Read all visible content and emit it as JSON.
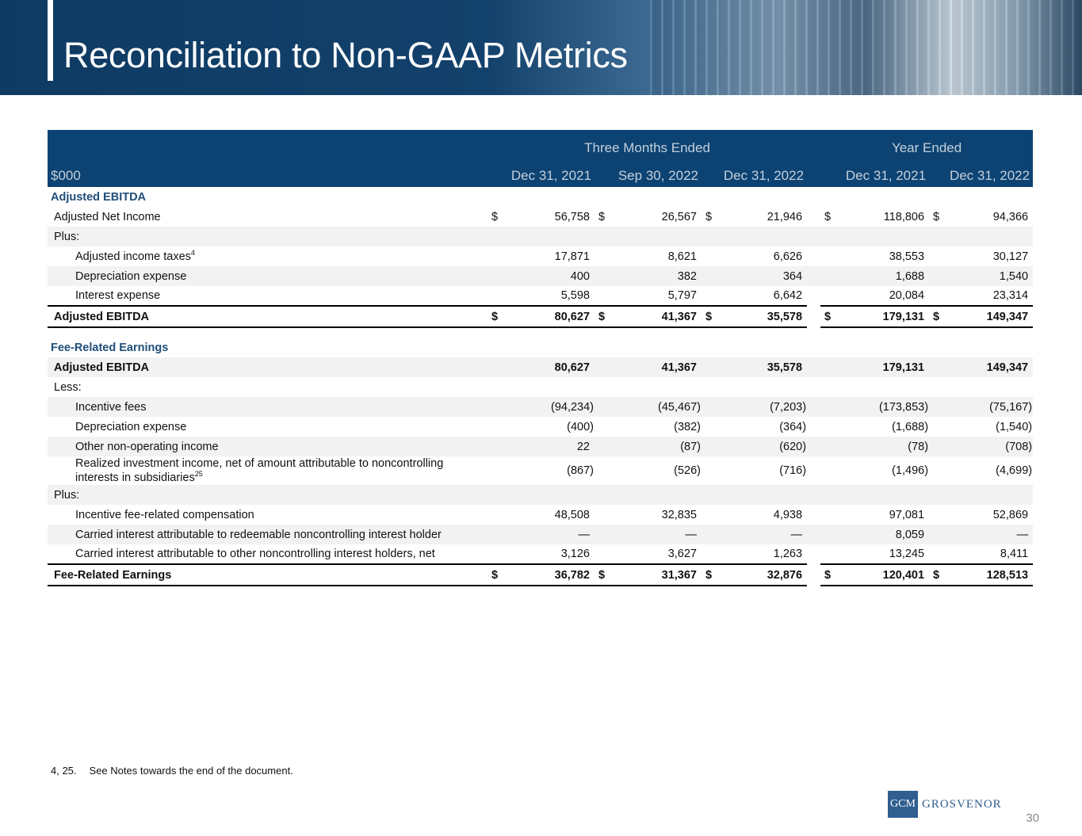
{
  "header": {
    "title": "Reconciliation to Non-GAAP Metrics"
  },
  "table": {
    "group_headers": [
      "Three Months Ended",
      "Year Ended"
    ],
    "unit": "$000",
    "columns": [
      "Dec 31, 2021",
      "Sep 30, 2022",
      "Dec 31, 2022",
      "Dec 31, 2021",
      "Dec 31, 2022"
    ],
    "currency": "$",
    "rows": [
      {
        "label": "Adjusted EBITDA",
        "kind": "section"
      },
      {
        "label": "Adjusted Net Income",
        "kind": "normal",
        "dollar": true,
        "values": [
          "56,758",
          "26,567",
          "21,946",
          "118,806",
          "94,366"
        ]
      },
      {
        "label": "Plus:",
        "kind": "normal",
        "shaded": true
      },
      {
        "label": "Adjusted income taxes",
        "sup": "4",
        "kind": "indent",
        "values": [
          "17,871",
          "8,621",
          "6,626",
          "38,553",
          "30,127"
        ]
      },
      {
        "label": "Depreciation expense",
        "kind": "indent",
        "shaded": true,
        "values": [
          "400",
          "382",
          "364",
          "1,688",
          "1,540"
        ]
      },
      {
        "label": "Interest expense",
        "kind": "indent",
        "values": [
          "5,598",
          "5,797",
          "6,642",
          "20,084",
          "23,314"
        ]
      },
      {
        "label": "Adjusted EBITDA",
        "kind": "total",
        "dollar": true,
        "values": [
          "80,627",
          "41,367",
          "35,578",
          "179,131",
          "149,347"
        ]
      },
      {
        "label": "Fee-Related Earnings",
        "kind": "section",
        "spaced": true
      },
      {
        "label": "Adjusted EBITDA",
        "kind": "bold",
        "shaded": true,
        "values": [
          "80,627",
          "41,367",
          "35,578",
          "179,131",
          "149,347"
        ]
      },
      {
        "label": "Less:",
        "kind": "normal"
      },
      {
        "label": "Incentive fees",
        "kind": "indent",
        "shaded": true,
        "values": [
          "(94,234)",
          "(45,467)",
          "(7,203)",
          "(173,853)",
          "(75,167)"
        ]
      },
      {
        "label": "Depreciation expense",
        "kind": "indent",
        "values": [
          "(400)",
          "(382)",
          "(364)",
          "(1,688)",
          "(1,540)"
        ]
      },
      {
        "label": "Other non-operating income",
        "kind": "indent",
        "shaded": true,
        "values": [
          "22",
          "(87)",
          "(620)",
          "(78)",
          "(708)"
        ]
      },
      {
        "label": "Realized investment income, net of amount attributable to noncontrolling interests in subsidiaries",
        "sup": "25",
        "kind": "indent",
        "values": [
          "(867)",
          "(526)",
          "(716)",
          "(1,496)",
          "(4,699)"
        ]
      },
      {
        "label": "Plus:",
        "kind": "normal",
        "shaded": true
      },
      {
        "label": "Incentive fee-related compensation",
        "kind": "indent",
        "values": [
          "48,508",
          "32,835",
          "4,938",
          "97,081",
          "52,869"
        ]
      },
      {
        "label": "Carried interest attributable to redeemable noncontrolling interest holder",
        "kind": "indent",
        "shaded": true,
        "values": [
          "—",
          "—",
          "—",
          "8,059",
          "—"
        ]
      },
      {
        "label": "Carried interest attributable to other noncontrolling interest holders, net",
        "kind": "indent",
        "values": [
          "3,126",
          "3,627",
          "1,263",
          "13,245",
          "8,411"
        ]
      },
      {
        "label": "Fee-Related Earnings",
        "kind": "total",
        "dollar": true,
        "values": [
          "36,782",
          "31,367",
          "32,876",
          "120,401",
          "128,513"
        ]
      }
    ]
  },
  "footnote": {
    "refs": "4, 25.",
    "text": "See Notes towards the end of the document."
  },
  "logo": {
    "mark": "GCM",
    "name": "GROSVENOR"
  },
  "page_number": "30"
}
